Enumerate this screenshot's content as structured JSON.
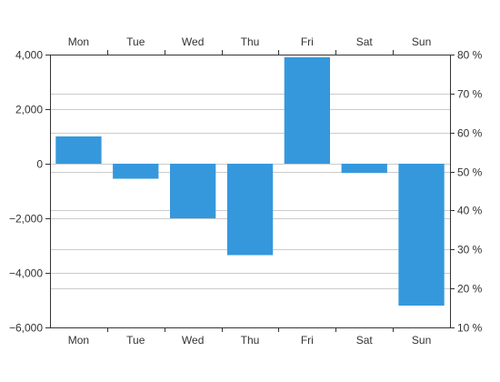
{
  "chart_data": {
    "type": "bar",
    "categories": [
      "Mon",
      "Tue",
      "Wed",
      "Thu",
      "Fri",
      "Sat",
      "Sun"
    ],
    "values": [
      1000,
      -550,
      -2000,
      -3350,
      3900,
      -340,
      -5200
    ],
    "ylim": [
      -6000,
      4000
    ],
    "y_ticks": [
      {
        "value": 4000,
        "label": "4,000"
      },
      {
        "value": 2000,
        "label": "2,000"
      },
      {
        "value": 0,
        "label": "0"
      },
      {
        "value": -2000,
        "label": "−2,000"
      },
      {
        "value": -4000,
        "label": "−4,000"
      },
      {
        "value": -6000,
        "label": "−6,000"
      }
    ],
    "y2lim": [
      10,
      80
    ],
    "y2_ticks": [
      {
        "value": 80,
        "label": "80 %"
      },
      {
        "value": 70,
        "label": "70 %"
      },
      {
        "value": 60,
        "label": "60 %"
      },
      {
        "value": 50,
        "label": "50 %"
      },
      {
        "value": 40,
        "label": "40 %"
      },
      {
        "value": 30,
        "label": "30 %"
      },
      {
        "value": 20,
        "label": "20 %"
      },
      {
        "value": 10,
        "label": "10 %"
      }
    ],
    "bar_color": "#3598dc",
    "grid": true,
    "title": "",
    "xlabel": "",
    "ylabel": ""
  }
}
